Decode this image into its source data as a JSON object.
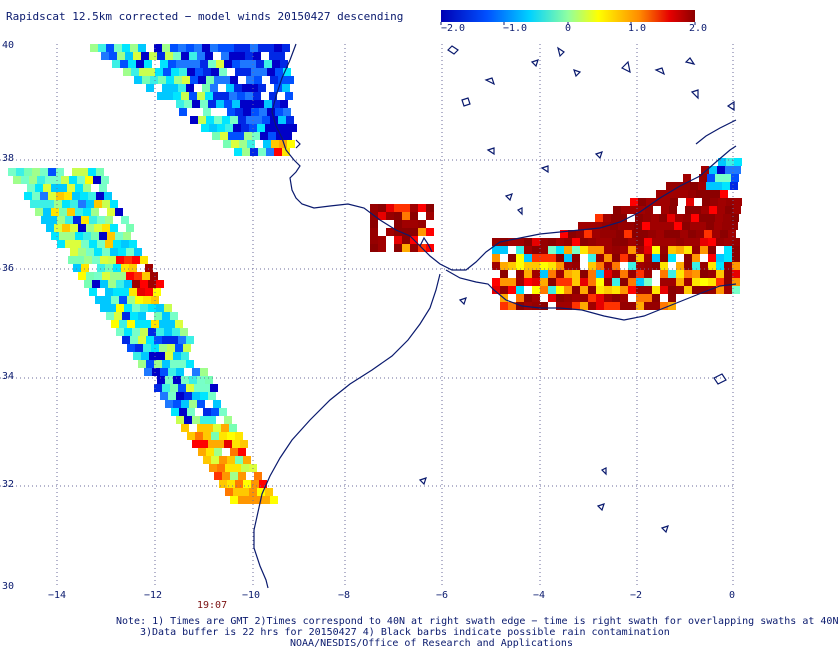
{
  "title": "Rapidscat 12.5km corrected − model winds 20150427 descending",
  "colorbar": {
    "labels": [
      "−2.0",
      "−1.0",
      "0",
      "1.0",
      "2.0"
    ],
    "range": [
      -2.0,
      2.0
    ],
    "colors": [
      "#0000c8",
      "#0050ff",
      "#00c8ff",
      "#7dffb4",
      "#ffff00",
      "#ff9600",
      "#ff0000",
      "#8b0000"
    ]
  },
  "axes": {
    "lat_labels": [
      "40",
      "38",
      "36",
      "34",
      "32",
      "30"
    ],
    "lon_labels": [
      "−14",
      "−12",
      "−10",
      "−8",
      "−6",
      "−4",
      "−2",
      "0"
    ],
    "lat_range": [
      30,
      40
    ],
    "lon_range": [
      -15,
      0
    ],
    "grid": "dotted"
  },
  "time_label": "19:07",
  "notes": [
    "Note: 1) Times are GMT 2)Times correspond to 40N at right swath edge − time is right swath for overlapping swaths at 40N",
    "3)Data buffer is 22 hrs for 20150427 4) Black barbs indicate possible rain contamination",
    "NOAA/NESDIS/Office of Research and Applications"
  ],
  "colors": {
    "land_outline": "#0a1a6e",
    "grid": "#6b6b9b",
    "text": "#0a1a6e"
  }
}
